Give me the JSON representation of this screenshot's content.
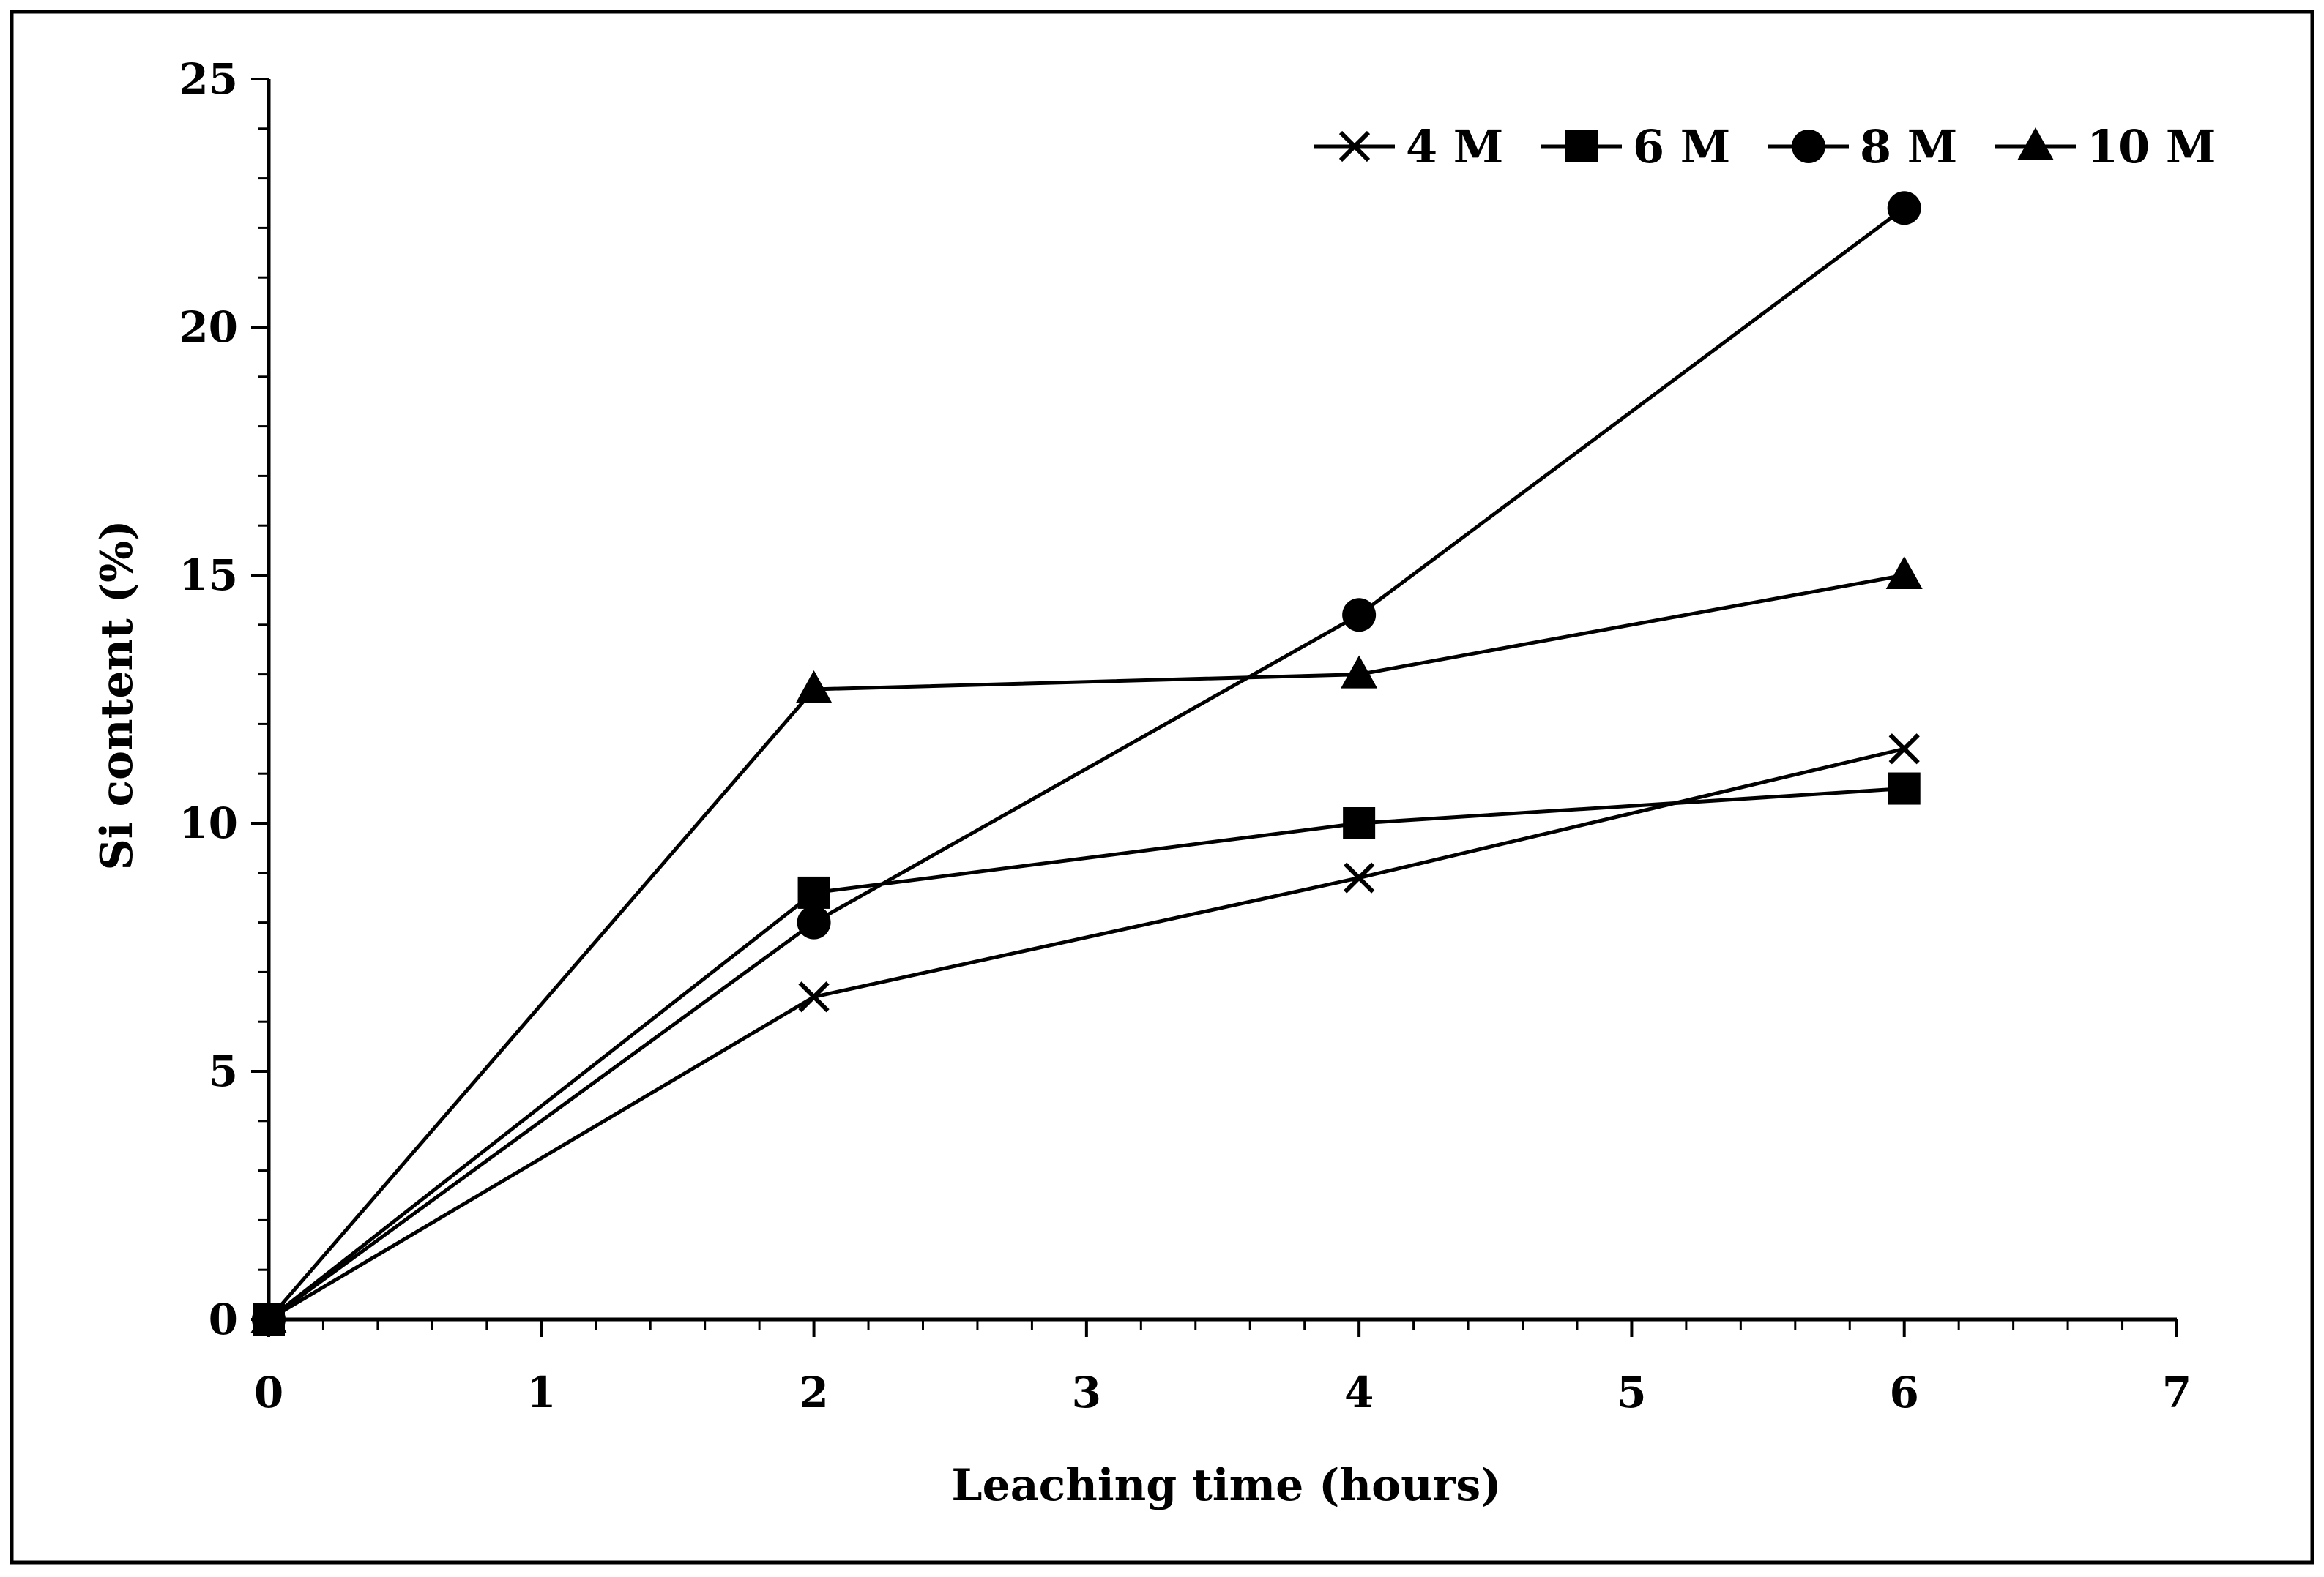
{
  "chart_data": {
    "type": "line",
    "title": "",
    "xlabel": "Leaching time (hours)",
    "ylabel": "Si content (%)",
    "xlim": [
      0,
      7
    ],
    "ylim": [
      0,
      25
    ],
    "xticks": [
      0,
      1,
      2,
      3,
      4,
      5,
      6,
      7
    ],
    "yticks": [
      0,
      5,
      10,
      15,
      20,
      25
    ],
    "x_minor_step": 0.2,
    "y_minor_step": 1,
    "grid": false,
    "legend_position": "top-right",
    "series": [
      {
        "name": "4 M",
        "marker": "x",
        "x": [
          0,
          2,
          4,
          6
        ],
        "values": [
          0,
          6.5,
          8.9,
          11.5
        ]
      },
      {
        "name": "6 M",
        "marker": "square",
        "x": [
          0,
          2,
          4,
          6
        ],
        "values": [
          0,
          8.6,
          10.0,
          10.7
        ]
      },
      {
        "name": "8 M",
        "marker": "circle",
        "x": [
          0,
          2,
          4,
          6
        ],
        "values": [
          0,
          8.0,
          14.2,
          22.4
        ]
      },
      {
        "name": "10 M",
        "marker": "triangle",
        "x": [
          0,
          2,
          4,
          6
        ],
        "values": [
          0,
          12.7,
          13.0,
          15.0
        ]
      }
    ],
    "colors": {
      "line": "#000000",
      "background": "#ffffff"
    }
  }
}
